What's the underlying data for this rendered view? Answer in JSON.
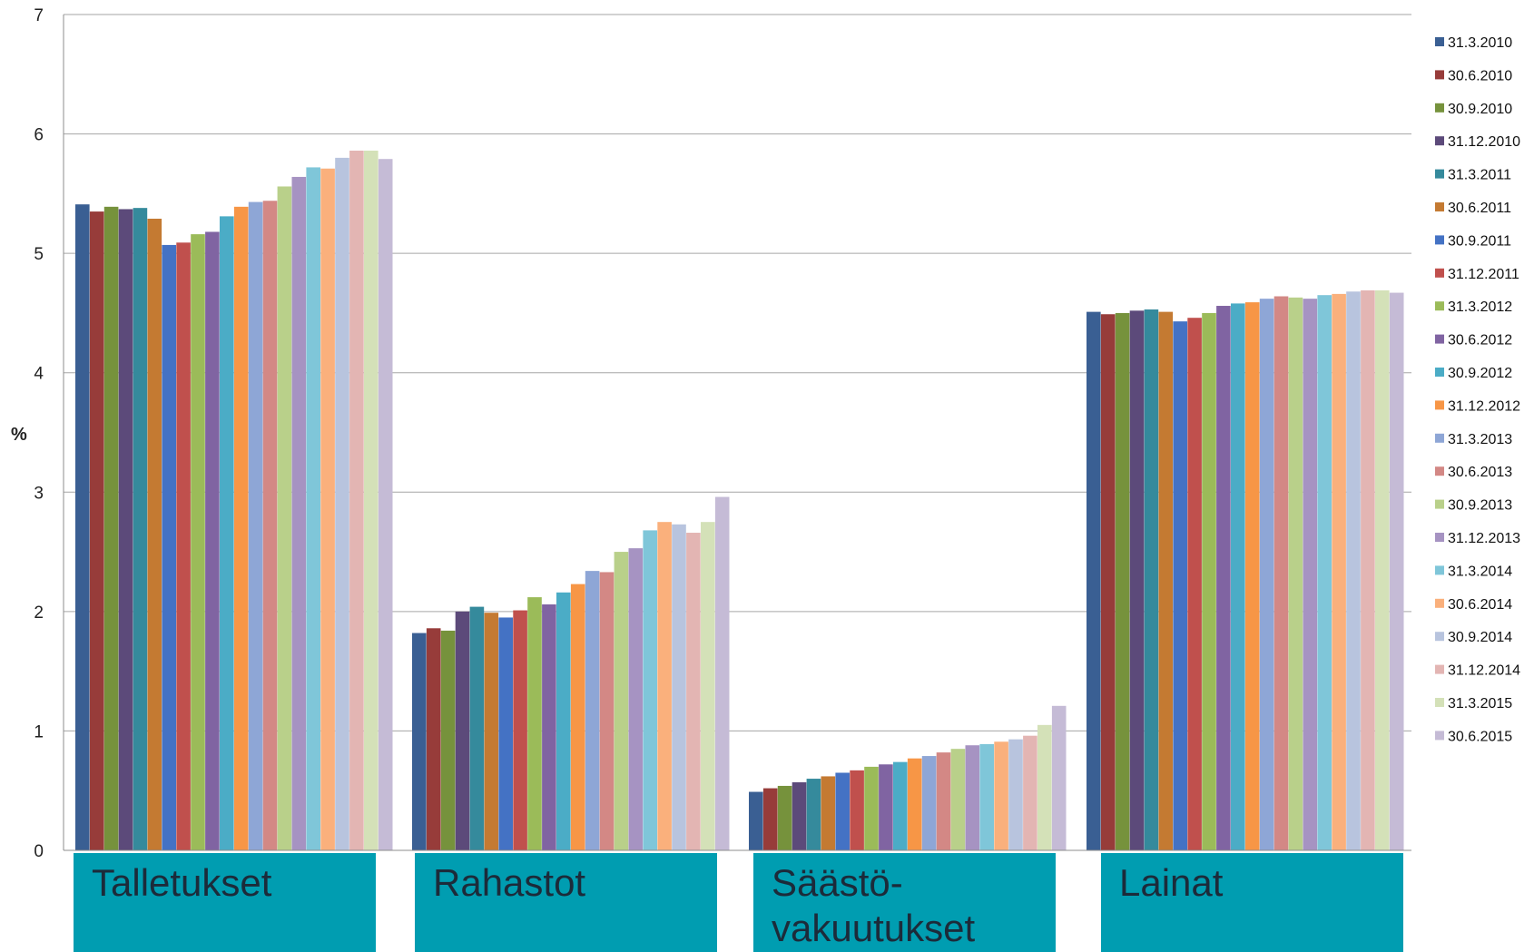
{
  "chart_data": {
    "type": "bar",
    "ylabel": "%",
    "ylim": [
      0,
      7
    ],
    "yticks": [
      "0",
      "1",
      "2",
      "3",
      "4",
      "5",
      "6",
      "7"
    ],
    "grid": true,
    "legend_position": "right",
    "categories": [
      "Talletukset",
      "Rahastot",
      "Säästö-vakuutukset",
      "Lainat"
    ],
    "category_labels": [
      [
        "Talletukset"
      ],
      [
        "Rahastot"
      ],
      [
        "Säästö-",
        "vakuutukset"
      ],
      [
        "Lainat"
      ]
    ],
    "category_box_color": "#009db1",
    "series": [
      {
        "name": "31.3.2010",
        "color": "#3a5f93",
        "values": [
          5.41,
          1.82,
          0.49,
          4.51
        ]
      },
      {
        "name": "30.6.2010",
        "color": "#973c3a",
        "values": [
          5.35,
          1.86,
          0.52,
          4.49
        ]
      },
      {
        "name": "30.9.2010",
        "color": "#76923c",
        "values": [
          5.39,
          1.84,
          0.54,
          4.5
        ]
      },
      {
        "name": "31.12.2010",
        "color": "#5c4a7a",
        "values": [
          5.37,
          2.0,
          0.57,
          4.52
        ]
      },
      {
        "name": "31.3.2011",
        "color": "#358a9c",
        "values": [
          5.38,
          2.04,
          0.6,
          4.53
        ]
      },
      {
        "name": "30.6.2011",
        "color": "#c47a32",
        "values": [
          5.29,
          1.99,
          0.62,
          4.51
        ]
      },
      {
        "name": "30.9.2011",
        "color": "#4472c4",
        "values": [
          5.07,
          1.95,
          0.65,
          4.43
        ]
      },
      {
        "name": "31.12.2011",
        "color": "#c0504d",
        "values": [
          5.09,
          2.01,
          0.67,
          4.46
        ]
      },
      {
        "name": "31.3.2012",
        "color": "#9bbb59",
        "values": [
          5.16,
          2.12,
          0.7,
          4.5
        ]
      },
      {
        "name": "30.6.2012",
        "color": "#8064a2",
        "values": [
          5.18,
          2.06,
          0.72,
          4.56
        ]
      },
      {
        "name": "30.9.2012",
        "color": "#4bacc6",
        "values": [
          5.31,
          2.16,
          0.74,
          4.58
        ]
      },
      {
        "name": "31.12.2012",
        "color": "#f79646",
        "values": [
          5.39,
          2.23,
          0.77,
          4.59
        ]
      },
      {
        "name": "31.3.2013",
        "color": "#8ea6d6",
        "values": [
          5.43,
          2.34,
          0.79,
          4.62
        ]
      },
      {
        "name": "30.6.2013",
        "color": "#d38885",
        "values": [
          5.44,
          2.33,
          0.82,
          4.64
        ]
      },
      {
        "name": "30.9.2013",
        "color": "#b9d08a",
        "values": [
          5.56,
          2.5,
          0.85,
          4.63
        ]
      },
      {
        "name": "31.12.2013",
        "color": "#a693c2",
        "values": [
          5.64,
          2.53,
          0.88,
          4.62
        ]
      },
      {
        "name": "31.3.2014",
        "color": "#7fc6d9",
        "values": [
          5.72,
          2.68,
          0.89,
          4.65
        ]
      },
      {
        "name": "30.6.2014",
        "color": "#fab07c",
        "values": [
          5.71,
          2.75,
          0.91,
          4.66
        ]
      },
      {
        "name": "30.9.2014",
        "color": "#b8c4de",
        "values": [
          5.8,
          2.73,
          0.93,
          4.68
        ]
      },
      {
        "name": "31.12.2014",
        "color": "#e3b5b3",
        "values": [
          5.86,
          2.66,
          0.96,
          4.69
        ]
      },
      {
        "name": "31.3.2015",
        "color": "#d4e1b8",
        "values": [
          5.86,
          2.75,
          1.05,
          4.69
        ]
      },
      {
        "name": "30.6.2015",
        "color": "#c5bbd6",
        "values": [
          5.79,
          2.96,
          1.21,
          4.67
        ]
      }
    ]
  }
}
